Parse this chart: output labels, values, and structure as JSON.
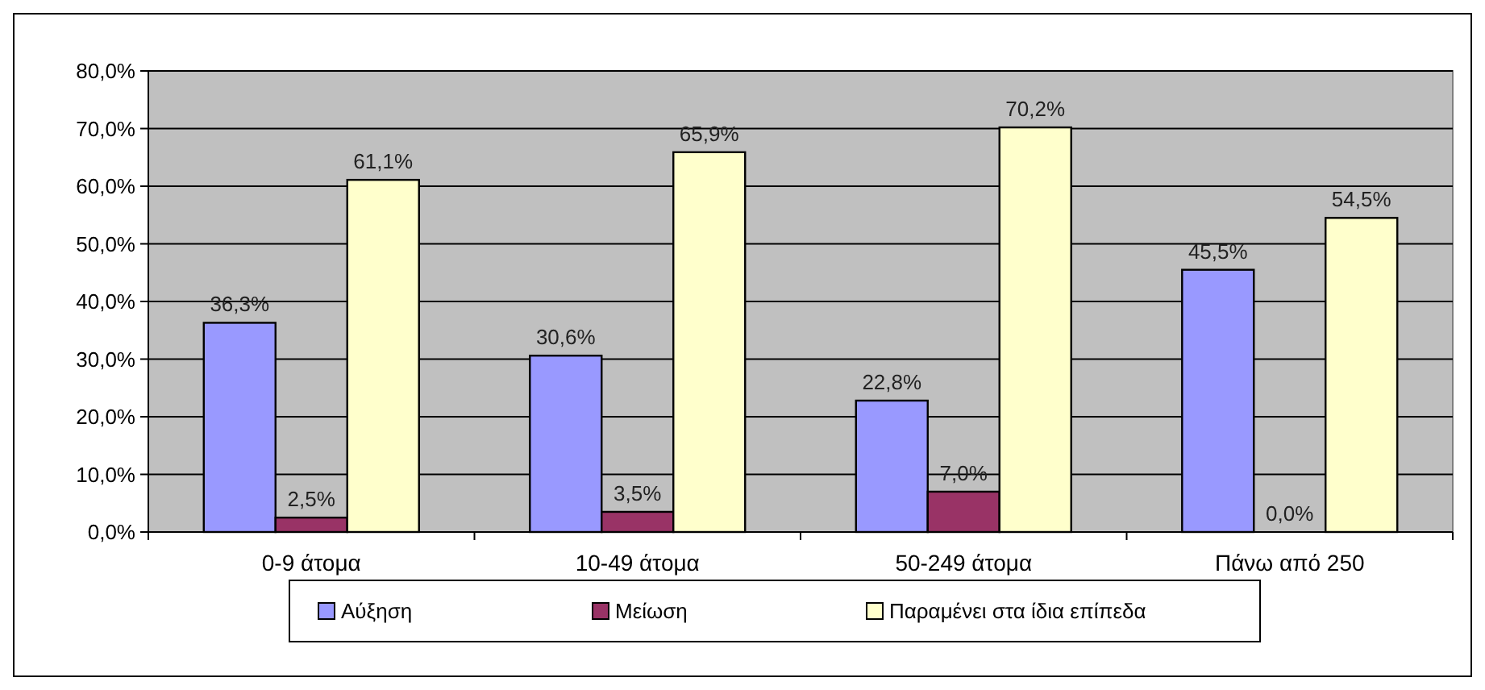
{
  "chart_data": {
    "type": "bar",
    "categories": [
      "0-9 άτομα",
      "10-49 άτομα",
      "50-249 άτομα",
      "Πάνω από 250"
    ],
    "series": [
      {
        "name": "Αύξηση",
        "color": "#9999ff",
        "values": [
          36.3,
          30.6,
          22.8,
          45.5
        ],
        "value_labels": [
          "36,3%",
          "30,6%",
          "22,8%",
          "45,5%"
        ]
      },
      {
        "name": "Μείωση",
        "color": "#993366",
        "values": [
          2.5,
          3.5,
          7.0,
          0.0
        ],
        "value_labels": [
          "2,5%",
          "3,5%",
          "7,0%",
          "0,0%"
        ]
      },
      {
        "name": "Παραμένει στα ίδια επίπεδα",
        "color": "#ffffcc",
        "values": [
          61.1,
          65.9,
          70.2,
          54.5
        ],
        "value_labels": [
          "61,1%",
          "65,9%",
          "70,2%",
          "54,5%"
        ]
      }
    ],
    "ylim": [
      0,
      80
    ],
    "yticks": [
      {
        "value": 0,
        "label": "0,0%"
      },
      {
        "value": 10,
        "label": "10,0%"
      },
      {
        "value": 20,
        "label": "20,0%"
      },
      {
        "value": 30,
        "label": "30,0%"
      },
      {
        "value": 40,
        "label": "40,0%"
      },
      {
        "value": 50,
        "label": "50,0%"
      },
      {
        "value": 60,
        "label": "60,0%"
      },
      {
        "value": 70,
        "label": "70,0%"
      },
      {
        "value": 80,
        "label": "80,0%"
      }
    ],
    "grid": "y",
    "legend": "bottom"
  }
}
